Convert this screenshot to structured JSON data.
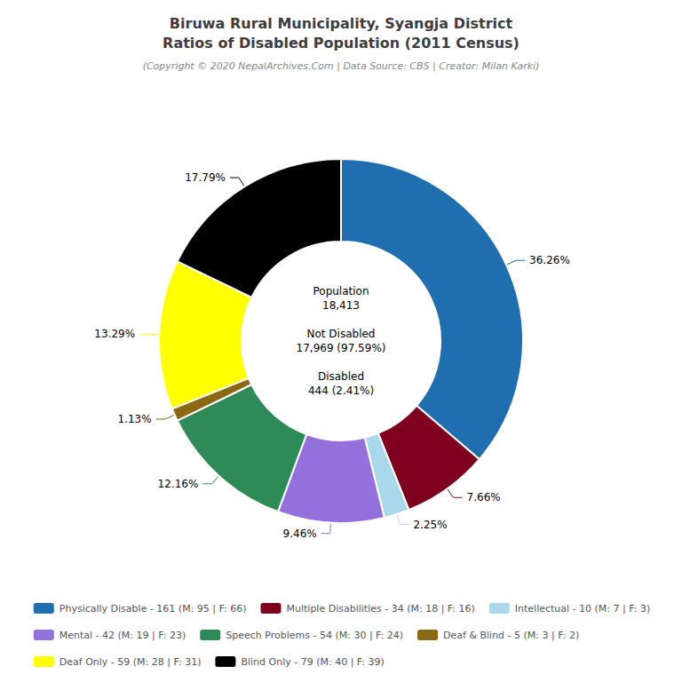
{
  "chart_data": {
    "type": "pie",
    "title": "Biruwa Rural Municipality, Syangja District\nRatios of Disabled Population (2011 Census)",
    "subtitle": "(Copyright © 2020 NepalArchives.Com | Data Source: CBS | Creator: Milan Karki)",
    "categories": [
      "Physically Disable - 161 (M: 95 | F: 66)",
      "Multiple Disabilities - 34 (M: 18 | F: 16)",
      "Intellectual - 10 (M: 7 | F: 3)",
      "Mental - 42 (M: 19 | F: 23)",
      "Speech Problems - 54 (M: 30 | F: 24)",
      "Deaf & Blind - 5 (M: 3 | F: 2)",
      "Deaf Only - 59 (M: 28 | F: 31)",
      "Blind Only - 79 (M: 40 | F: 39)"
    ],
    "values": [
      36.26,
      7.66,
      2.25,
      9.46,
      12.16,
      1.13,
      13.29,
      17.79
    ],
    "value_labels": [
      "36.26%",
      "7.66%",
      "2.25%",
      "9.46%",
      "12.16%",
      "1.13%",
      "13.29%",
      "17.79%"
    ],
    "colors": [
      "#1e6eb0",
      "#800020",
      "#a8d8ea",
      "#9370db",
      "#2e8b57",
      "#8b6914",
      "#ffff00",
      "#000000"
    ],
    "data_labels": true,
    "legend": "bottom",
    "annotations": [
      "Population\n18,413\n\nNot Disabled\n17,969 (97.59%)\n\nDisabled\n444 (2.41%)"
    ]
  }
}
